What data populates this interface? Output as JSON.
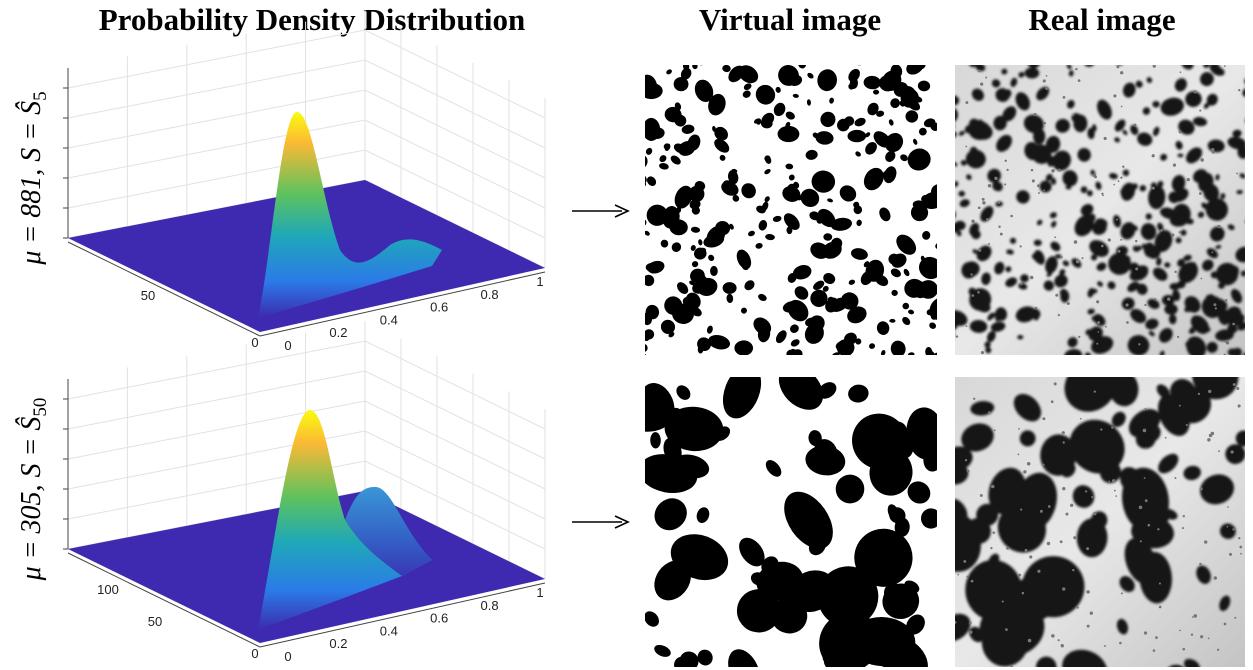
{
  "header": {
    "col1": "Probability Density Distribution",
    "col2": "Virtual image",
    "col3": "Real image"
  },
  "rows": [
    {
      "label_prefix": "μ = 881, S = ",
      "label_symbol": "Ŝ",
      "label_subscript": "5",
      "x_ticks": [
        "0",
        "0.2",
        "0.4",
        "0.6",
        "0.8",
        "1"
      ],
      "y_ticks": [
        "0",
        "50"
      ]
    },
    {
      "label_prefix": "μ = 305, S = ",
      "label_symbol": "Ŝ",
      "label_subscript": "50",
      "x_ticks": [
        "0",
        "0.2",
        "0.4",
        "0.6",
        "0.8",
        "1"
      ],
      "y_ticks": [
        "0",
        "50",
        "100"
      ]
    }
  ]
}
